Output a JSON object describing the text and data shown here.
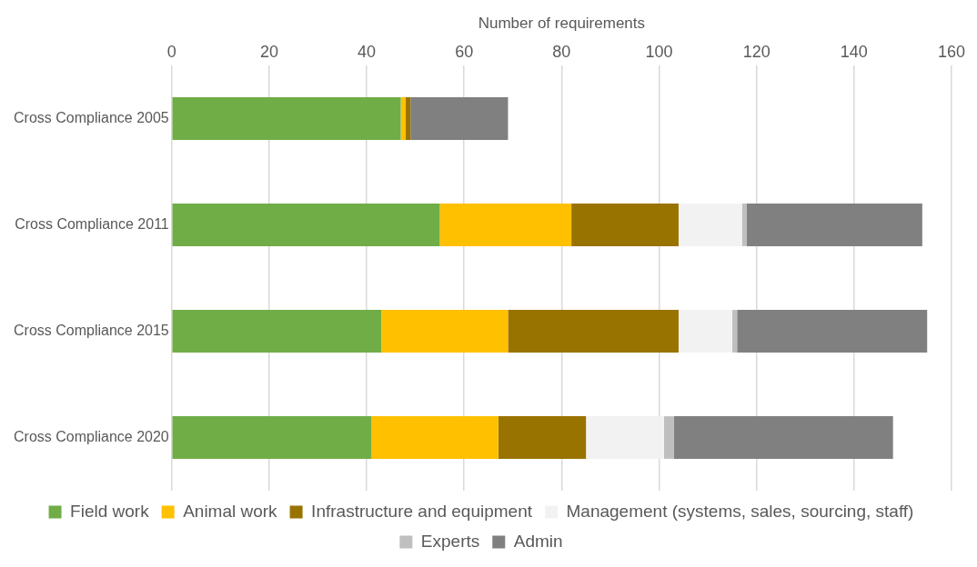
{
  "chart_data": {
    "type": "bar",
    "orientation": "horizontal",
    "stacked": true,
    "xlabel": "Number of requirements",
    "categories": [
      "Cross Compliance 2005",
      "Cross Compliance 2011",
      "Cross Compliance 2015",
      "Cross Compliance 2020"
    ],
    "series": [
      {
        "name": "Field work",
        "color": "#70ad47",
        "values": [
          47,
          55,
          43,
          41
        ]
      },
      {
        "name": "Animal work",
        "color": "#ffc000",
        "values": [
          1,
          27,
          26,
          26
        ]
      },
      {
        "name": "Infrastructure and equipment",
        "color": "#997300",
        "values": [
          1,
          22,
          35,
          18
        ]
      },
      {
        "name": "Management (systems, sales, sourcing, staff)",
        "color": "#f2f2f2",
        "values": [
          0,
          13,
          11,
          16
        ]
      },
      {
        "name": "Experts",
        "color": "#bfbfbf",
        "values": [
          0,
          1,
          1,
          2
        ]
      },
      {
        "name": "Admin",
        "color": "#808080",
        "values": [
          20,
          36,
          39,
          45
        ]
      }
    ],
    "xlim": [
      0,
      160
    ],
    "xticks": [
      0,
      20,
      40,
      60,
      80,
      100,
      120,
      140,
      160
    ],
    "grid": "x",
    "legend": "bottom"
  }
}
